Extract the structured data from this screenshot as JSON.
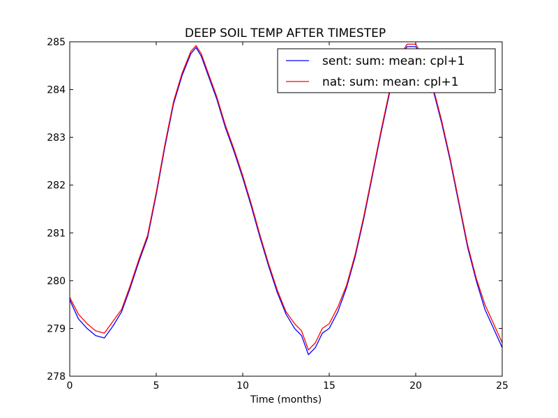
{
  "chart_data": {
    "type": "line",
    "title": "DEEP SOIL TEMP AFTER TIMESTEP",
    "xlabel": "Time (months)",
    "ylabel": "",
    "xlim": [
      0,
      25
    ],
    "ylim": [
      278,
      285
    ],
    "xticks": [
      "0",
      "5",
      "10",
      "15",
      "20",
      "25"
    ],
    "yticks": [
      "278",
      "279",
      "280",
      "281",
      "282",
      "283",
      "284",
      "285"
    ],
    "grid": false,
    "legend_position": "top-right",
    "series": [
      {
        "name": "sent: sum: mean: cpl+1",
        "color": "#0000ff",
        "x": [
          0,
          0.5,
          1,
          1.5,
          2,
          2.5,
          3,
          3.5,
          4,
          4.5,
          5,
          5.5,
          6,
          6.5,
          7,
          7.3,
          7.6,
          8,
          8.5,
          9,
          9.5,
          10,
          10.5,
          11,
          11.5,
          12,
          12.5,
          13,
          13.4,
          13.8,
          14.2,
          14.6,
          15,
          15.5,
          16,
          16.5,
          17,
          17.5,
          18,
          18.5,
          19,
          19.5,
          20,
          20.5,
          21,
          21.5,
          22,
          22.5,
          23,
          23.5,
          24,
          24.5,
          25
        ],
        "values": [
          279.6,
          279.2,
          279.0,
          278.85,
          278.8,
          279.05,
          279.35,
          279.85,
          280.4,
          280.9,
          281.8,
          282.8,
          283.7,
          284.3,
          284.75,
          284.88,
          284.7,
          284.3,
          283.8,
          283.2,
          282.7,
          282.15,
          281.55,
          280.9,
          280.3,
          279.75,
          279.3,
          279.0,
          278.85,
          278.45,
          278.6,
          278.9,
          279.0,
          279.35,
          279.85,
          280.5,
          281.3,
          282.2,
          283.1,
          283.95,
          284.6,
          284.9,
          284.9,
          284.6,
          284.0,
          283.3,
          282.5,
          281.6,
          280.7,
          280.0,
          279.4,
          279.0,
          278.6
        ]
      },
      {
        "name": "nat: sum: mean: cpl+1",
        "color": "#ff0000",
        "x": [
          0,
          0.5,
          1,
          1.5,
          2,
          2.5,
          3,
          3.5,
          4,
          4.5,
          5,
          5.5,
          6,
          6.5,
          7,
          7.3,
          7.6,
          8,
          8.5,
          9,
          9.5,
          10,
          10.5,
          11,
          11.5,
          12,
          12.5,
          13,
          13.4,
          13.8,
          14.2,
          14.6,
          15,
          15.5,
          16,
          16.5,
          17,
          17.5,
          18,
          18.5,
          19,
          19.5,
          20,
          20.5,
          21,
          21.5,
          22,
          22.5,
          23,
          23.5,
          24,
          24.5,
          25
        ],
        "values": [
          279.65,
          279.3,
          279.1,
          278.95,
          278.9,
          279.15,
          279.4,
          279.9,
          280.45,
          280.95,
          281.85,
          282.85,
          283.75,
          284.35,
          284.8,
          284.92,
          284.75,
          284.35,
          283.85,
          283.25,
          282.75,
          282.2,
          281.6,
          280.95,
          280.35,
          279.8,
          279.35,
          279.1,
          278.95,
          278.55,
          278.7,
          279.0,
          279.1,
          279.45,
          279.9,
          280.55,
          281.35,
          282.25,
          283.15,
          284.0,
          284.65,
          284.95,
          284.95,
          284.65,
          284.05,
          283.35,
          282.55,
          281.65,
          280.75,
          280.05,
          279.5,
          279.1,
          278.7
        ]
      }
    ]
  }
}
